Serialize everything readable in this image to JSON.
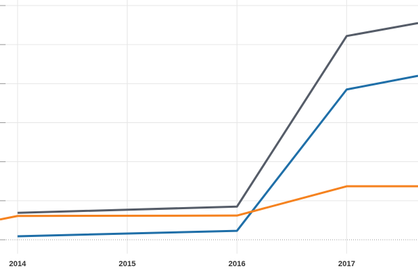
{
  "chart_data": {
    "type": "line",
    "x": [
      2013.84,
      2014,
      2016,
      2017,
      2017.65
    ],
    "series": [
      {
        "color": "#555c68",
        "values": [
          null,
          6.9,
          8.5,
          52.2,
          55.5
        ]
      },
      {
        "color": "#1f6fa8",
        "values": [
          null,
          0.9,
          2.3,
          38.5,
          42.0
        ]
      },
      {
        "color": "#f5821f",
        "values": [
          5.2,
          6.1,
          6.2,
          13.7,
          13.7
        ]
      }
    ],
    "xlim": [
      2013.84,
      2017.65
    ],
    "xticks": [
      2014,
      2015,
      2016,
      2017
    ],
    "ylim": [
      0,
      60
    ],
    "yticks": [
      0,
      10,
      20,
      30,
      40,
      50,
      60
    ],
    "grid": true
  }
}
